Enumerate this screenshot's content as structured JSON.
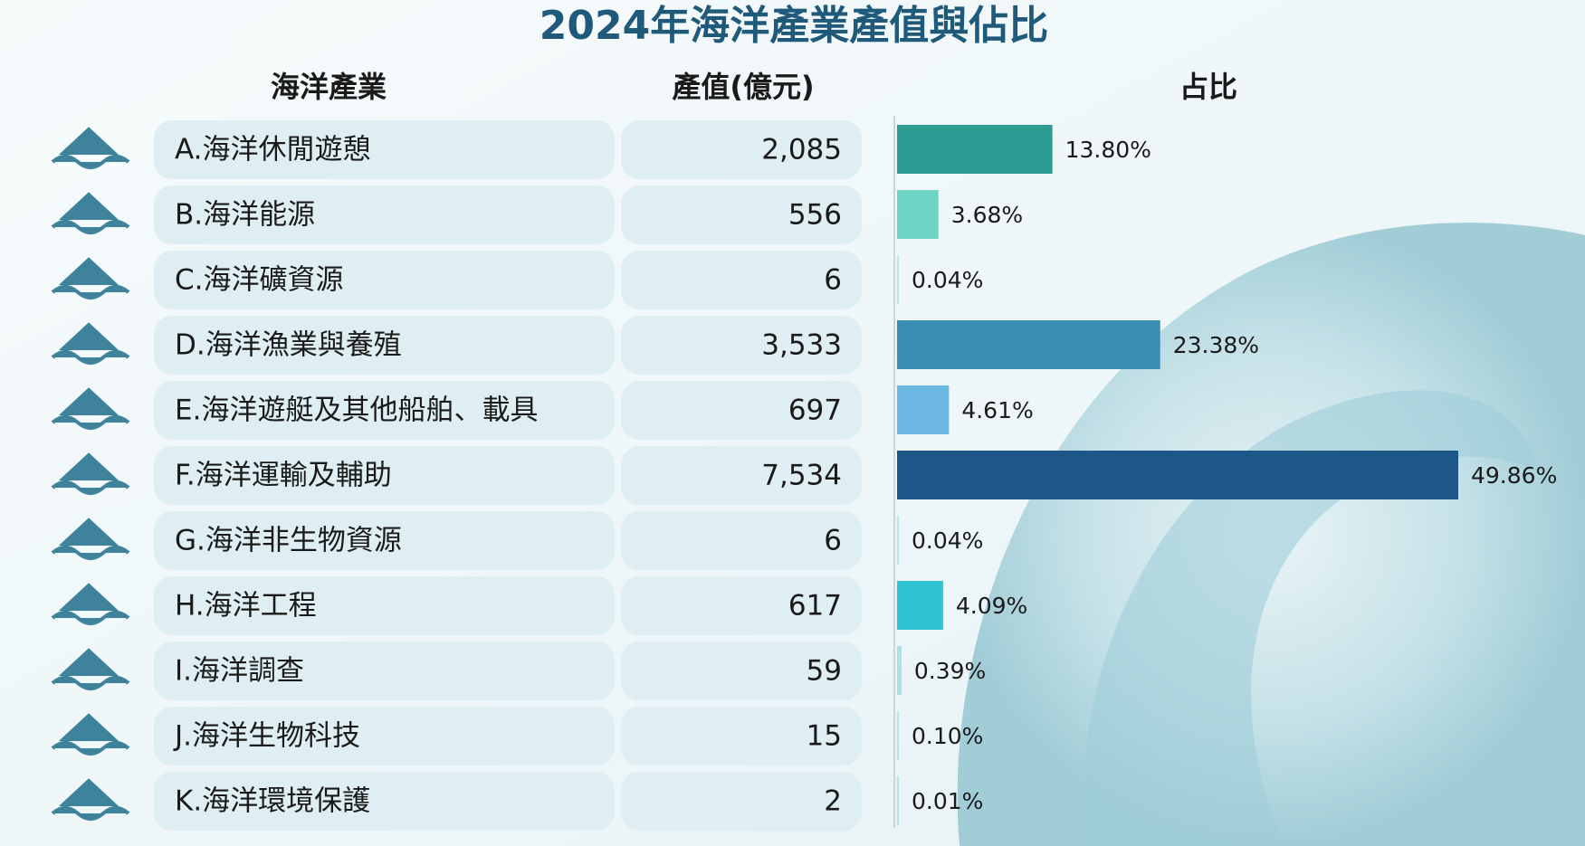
{
  "chart_data": {
    "type": "bar",
    "orientation": "horizontal",
    "title": "2024年海洋產業產值與佔比",
    "headers": [
      "海洋產業",
      "產值(億元)",
      "占比"
    ],
    "categories": [
      "A.海洋休閒遊憩",
      "B.海洋能源",
      "C.海洋礦資源",
      "D.海洋漁業與養殖",
      "E.海洋遊艇及其他船舶、載具",
      "F.海洋運輸及輔助",
      "G.海洋非生物資源",
      "H.海洋工程",
      "I.海洋調查",
      "J.海洋生物科技",
      "K.海洋環境保護"
    ],
    "output_labels": [
      "2,085",
      "556",
      "6",
      "3,533",
      "697",
      "7,534",
      "6",
      "617",
      "59",
      "15",
      "2"
    ],
    "values": [
      13.8,
      3.68,
      0.04,
      23.38,
      4.61,
      49.86,
      0.04,
      4.09,
      0.39,
      0.1,
      0.01
    ],
    "value_labels": [
      "13.80%",
      "3.68%",
      "0.04%",
      "23.38%",
      "4.61%",
      "49.86%",
      "0.04%",
      "4.09%",
      "0.39%",
      "0.10%",
      "0.01%"
    ],
    "colors": [
      "#2e9c93",
      "#6fd6c6",
      "#b9e3e6",
      "#3c8fb2",
      "#6cb8e2",
      "#1d5787",
      "#b9e3e6",
      "#2ec3d0",
      "#a9e2e2",
      "#b9e3e6",
      "#b9e3e6"
    ]
  }
}
